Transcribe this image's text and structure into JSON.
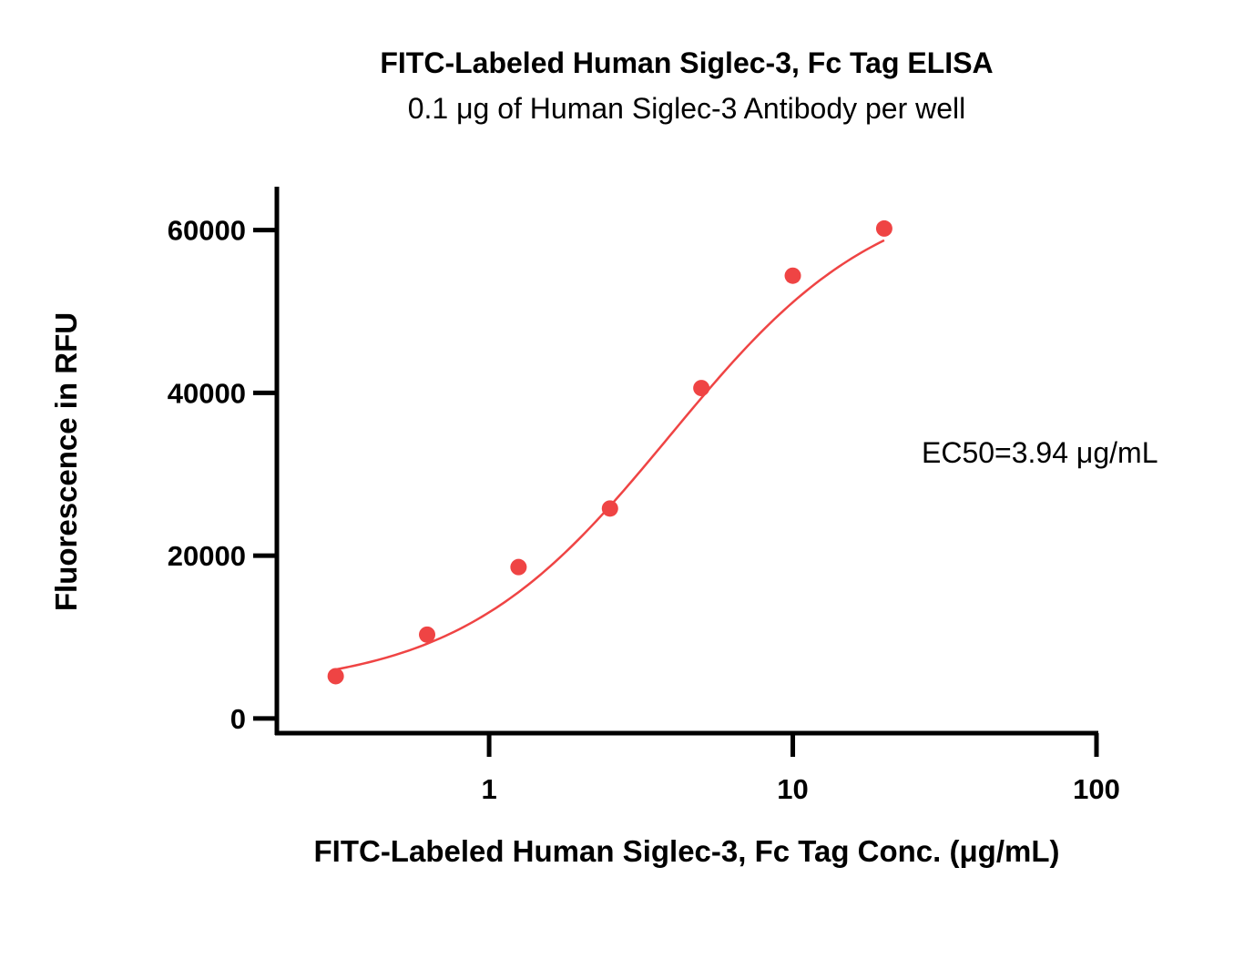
{
  "chart_data": {
    "type": "scatter",
    "title": "FITC-Labeled Human Siglec-3, Fc Tag ELISA",
    "subtitle": "0.1 μg of Human Siglec-3 Antibody per well",
    "xlabel": "FITC-Labeled Human Siglec-3, Fc Tag Conc. (μg/mL)",
    "ylabel": "Fluorescence in RFU",
    "xscale": "log",
    "xlim": [
      0.2,
      100
    ],
    "ylim": [
      -1800,
      65000
    ],
    "x_ticks": [
      1,
      10,
      100
    ],
    "x_tick_labels": [
      "1",
      "10",
      "100"
    ],
    "y_ticks": [
      0,
      20000,
      40000,
      60000
    ],
    "y_tick_labels": [
      "0",
      "20000",
      "40000",
      "60000"
    ],
    "grid": false,
    "series": [
      {
        "color": "#ef4444",
        "x": [
          0.3125,
          0.625,
          1.25,
          2.5,
          5,
          10,
          20
        ],
        "y": [
          5200,
          10300,
          18600,
          25800,
          40600,
          54400,
          60200
        ],
        "fit_curve": "4PL"
      }
    ],
    "annotation": "EC50=3.94 μg/mL",
    "ec50": 3.94
  }
}
